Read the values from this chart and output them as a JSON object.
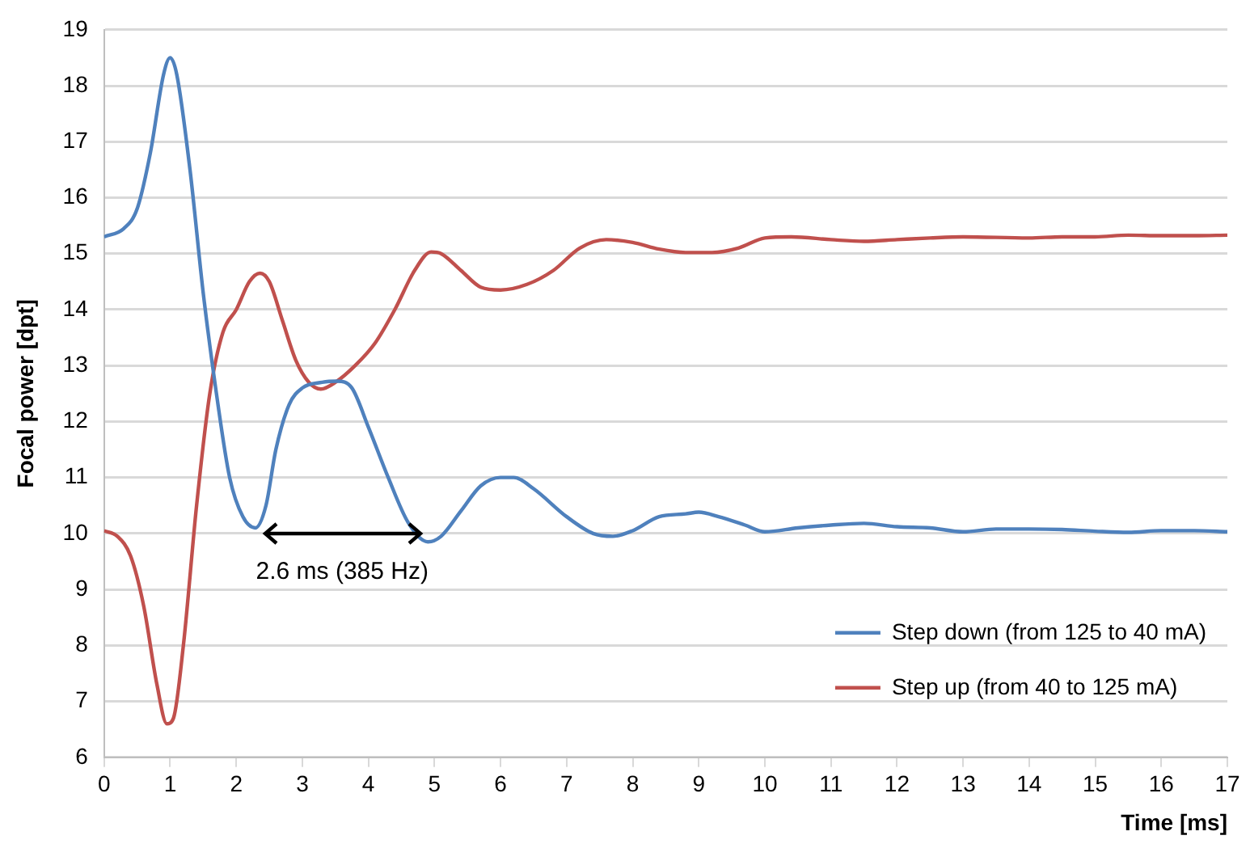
{
  "chart_data": {
    "type": "line",
    "xlabel": "Time [ms]",
    "ylabel": "Focal power [dpt]",
    "xlim": [
      0,
      17
    ],
    "xticks": [
      0,
      1,
      2,
      3,
      4,
      5,
      6,
      7,
      8,
      9,
      10,
      11,
      12,
      13,
      14,
      15,
      16,
      17
    ],
    "ylim": [
      6,
      19
    ],
    "yticks": [
      6,
      7,
      8,
      9,
      10,
      11,
      12,
      13,
      14,
      15,
      16,
      17,
      18,
      19
    ],
    "grid": "y",
    "legend": "bottom right",
    "marker": "none",
    "line_style": "solid",
    "annotations": [
      "2.6 ms (385 Hz)"
    ],
    "series": [
      {
        "name": "Step down (from 125 to 40 mA)",
        "color": "#4f81bd",
        "x": [
          0,
          0.3,
          0.5,
          0.7,
          0.9,
          1.0,
          1.1,
          1.3,
          1.5,
          1.7,
          1.9,
          2.1,
          2.29,
          2.45,
          2.6,
          2.8,
          3.0,
          3.3,
          3.53,
          3.75,
          4.0,
          4.3,
          4.6,
          4.9,
          5.1,
          5.4,
          5.7,
          6.0,
          6.2,
          6.5,
          7.0,
          7.4,
          7.7,
          8.0,
          8.4,
          8.8,
          9.0,
          9.3,
          9.7,
          10.0,
          10.5,
          11.0,
          11.5,
          12.0,
          12.5,
          13.0,
          13.5,
          14.0,
          14.5,
          15.0,
          15.5,
          16.0,
          16.5,
          17.0
        ],
        "values": [
          15.3,
          15.45,
          15.8,
          16.8,
          18.2,
          18.5,
          18.2,
          16.5,
          14.3,
          12.5,
          11.0,
          10.3,
          10.1,
          10.5,
          11.5,
          12.3,
          12.6,
          12.7,
          12.72,
          12.6,
          11.9,
          11.0,
          10.2,
          9.85,
          9.95,
          10.4,
          10.85,
          11.0,
          11.0,
          10.8,
          10.3,
          10.0,
          9.95,
          10.05,
          10.3,
          10.35,
          10.38,
          10.3,
          10.15,
          10.03,
          10.1,
          10.15,
          10.18,
          10.12,
          10.1,
          10.03,
          10.08,
          10.08,
          10.07,
          10.04,
          10.02,
          10.05,
          10.05,
          10.03
        ]
      },
      {
        "name": "Step up (from 40 to 125 mA)",
        "color": "#c0504d",
        "x": [
          0,
          0.2,
          0.4,
          0.6,
          0.8,
          0.95,
          1.05,
          1.2,
          1.4,
          1.6,
          1.8,
          2.0,
          2.2,
          2.36,
          2.5,
          2.7,
          2.9,
          3.1,
          3.28,
          3.5,
          3.8,
          4.1,
          4.4,
          4.7,
          4.95,
          5.1,
          5.4,
          5.7,
          6.0,
          6.4,
          6.8,
          7.2,
          7.6,
          8.0,
          8.4,
          8.8,
          9.2,
          9.6,
          10.0,
          10.4,
          11.0,
          11.5,
          12.0,
          12.5,
          13.0,
          14.0,
          14.5,
          15.0,
          15.5,
          16.0,
          16.5,
          17.0
        ],
        "values": [
          10.05,
          9.95,
          9.6,
          8.7,
          7.3,
          6.6,
          6.7,
          8.0,
          10.5,
          12.5,
          13.6,
          14.0,
          14.5,
          14.65,
          14.5,
          13.8,
          13.1,
          12.7,
          12.58,
          12.7,
          13.0,
          13.4,
          14.0,
          14.7,
          15.03,
          15.0,
          14.7,
          14.4,
          14.35,
          14.45,
          14.7,
          15.1,
          15.25,
          15.2,
          15.08,
          15.02,
          15.02,
          15.1,
          15.28,
          15.3,
          15.25,
          15.22,
          15.25,
          15.28,
          15.3,
          15.28,
          15.3,
          15.3,
          15.33,
          15.32,
          15.32,
          15.33
        ]
      }
    ]
  }
}
